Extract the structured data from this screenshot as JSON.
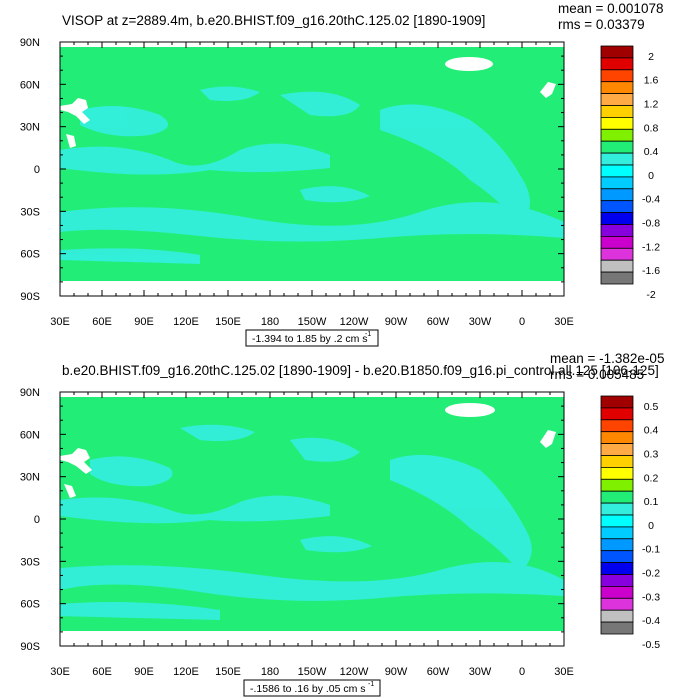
{
  "colors": {
    "ocean_base": "#22ee77",
    "anomaly_light": "#33eedd",
    "land_mask": "#ffffff"
  },
  "chart_data": [
    {
      "type": "heatmap",
      "title": "VISOP at z=2889.4m, b.e20.BHIST.f09_g16.20thC.125.02 [1890-1909]",
      "stats": {
        "mean": "mean = 0.001078",
        "rms": "rms = 0.03379"
      },
      "x_ticks": [
        "30E",
        "60E",
        "90E",
        "120E",
        "150E",
        "180",
        "150W",
        "120W",
        "90W",
        "60W",
        "30W",
        "0",
        "30E"
      ],
      "y_ticks": [
        "90N",
        "60N",
        "30N",
        "0",
        "30S",
        "60S",
        "90S"
      ],
      "xlim": [
        30,
        390
      ],
      "ylim": [
        -90,
        90
      ],
      "colorbar": {
        "labels": [
          "2",
          "1.6",
          "1.2",
          "0.8",
          "0.4",
          "0",
          "-0.4",
          "-0.8",
          "-1.2",
          "-1.6",
          "-2"
        ],
        "colors": [
          "#a00000",
          "#e00000",
          "#ff4400",
          "#ff8800",
          "#ffaa44",
          "#ffd000",
          "#ffff00",
          "#7ff000",
          "#22ee77",
          "#33eedd",
          "#00ffff",
          "#00ccff",
          "#0099ff",
          "#0055ff",
          "#0000ee",
          "#8800dd",
          "#cc00cc",
          "#dd33dd",
          "#c0c0c0",
          "#777777"
        ]
      },
      "contour_info": "-1.394 to 1.85 by .2 cm s",
      "contour_unit_exp": "-1"
    },
    {
      "type": "heatmap",
      "title": "b.e20.BHIST.f09_g16.20thC.125.02 [1890-1909] - b.e20.B1850.f09_g16.pi_control.all.125 [106-125]",
      "stats": {
        "mean": "mean = -1.382e-05",
        "rms": "rms = 0.005485"
      },
      "x_ticks": [
        "30E",
        "60E",
        "90E",
        "120E",
        "150E",
        "180",
        "150W",
        "120W",
        "90W",
        "60W",
        "30W",
        "0",
        "30E"
      ],
      "y_ticks": [
        "90N",
        "60N",
        "30N",
        "0",
        "30S",
        "60S",
        "90S"
      ],
      "xlim": [
        30,
        390
      ],
      "ylim": [
        -90,
        90
      ],
      "colorbar": {
        "labels": [
          "0.5",
          "0.4",
          "0.3",
          "0.2",
          "0.1",
          "0",
          "-0.1",
          "-0.2",
          "-0.3",
          "-0.4",
          "-0.5"
        ],
        "colors": [
          "#a00000",
          "#e00000",
          "#ff4400",
          "#ff8800",
          "#ffaa44",
          "#ffd000",
          "#ffff00",
          "#7ff000",
          "#22ee77",
          "#33eedd",
          "#00ffff",
          "#00ccff",
          "#0099ff",
          "#0055ff",
          "#0000ee",
          "#8800dd",
          "#cc00cc",
          "#dd33dd",
          "#c0c0c0",
          "#777777"
        ]
      },
      "contour_info": "-.1586 to .16 by .05 cm s",
      "contour_unit_exp": "-1"
    }
  ]
}
